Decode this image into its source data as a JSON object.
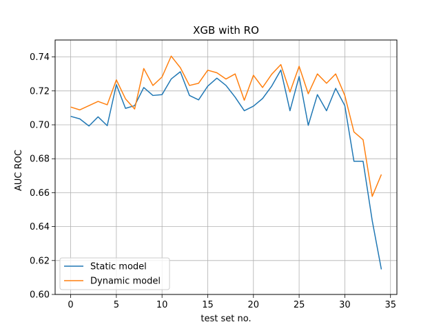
{
  "chart_data": {
    "type": "line",
    "title": "XGB with RO",
    "xlabel": "test set no.",
    "ylabel": "AUC ROC",
    "xlim": [
      -1.7,
      35.7
    ],
    "ylim": [
      0.6,
      0.75
    ],
    "xticks": [
      0,
      5,
      10,
      15,
      20,
      25,
      30,
      35
    ],
    "yticks": [
      0.6,
      0.62,
      0.64,
      0.66,
      0.68,
      0.7,
      0.72,
      0.74
    ],
    "grid": true,
    "legend_position": "lower-left",
    "x": [
      0,
      1,
      2,
      3,
      4,
      5,
      6,
      7,
      8,
      9,
      10,
      11,
      12,
      13,
      14,
      15,
      16,
      17,
      18,
      19,
      20,
      21,
      22,
      23,
      24,
      25,
      26,
      27,
      28,
      29,
      30,
      31,
      32,
      33,
      34
    ],
    "series": [
      {
        "name": "Static model",
        "color": "#1f77b4",
        "values": [
          0.705,
          0.7035,
          0.6993,
          0.7047,
          0.6995,
          0.7237,
          0.7097,
          0.7113,
          0.722,
          0.7173,
          0.7178,
          0.727,
          0.7313,
          0.7173,
          0.7147,
          0.7228,
          0.7275,
          0.7232,
          0.7163,
          0.7083,
          0.711,
          0.7155,
          0.7228,
          0.7323,
          0.7083,
          0.7285,
          0.6997,
          0.7178,
          0.7083,
          0.7215,
          0.7113,
          0.6785,
          0.6785,
          0.6435,
          0.6148
        ]
      },
      {
        "name": "Dynamic model",
        "color": "#ff7f0e",
        "values": [
          0.7105,
          0.7088,
          0.7113,
          0.7138,
          0.7118,
          0.7265,
          0.7153,
          0.7093,
          0.7332,
          0.7232,
          0.7282,
          0.7405,
          0.7337,
          0.7232,
          0.7245,
          0.7322,
          0.7307,
          0.727,
          0.73,
          0.7145,
          0.7292,
          0.722,
          0.7298,
          0.7355,
          0.7193,
          0.7345,
          0.7183,
          0.73,
          0.7245,
          0.73,
          0.7173,
          0.6958,
          0.6912,
          0.6578,
          0.6707
        ]
      }
    ]
  }
}
